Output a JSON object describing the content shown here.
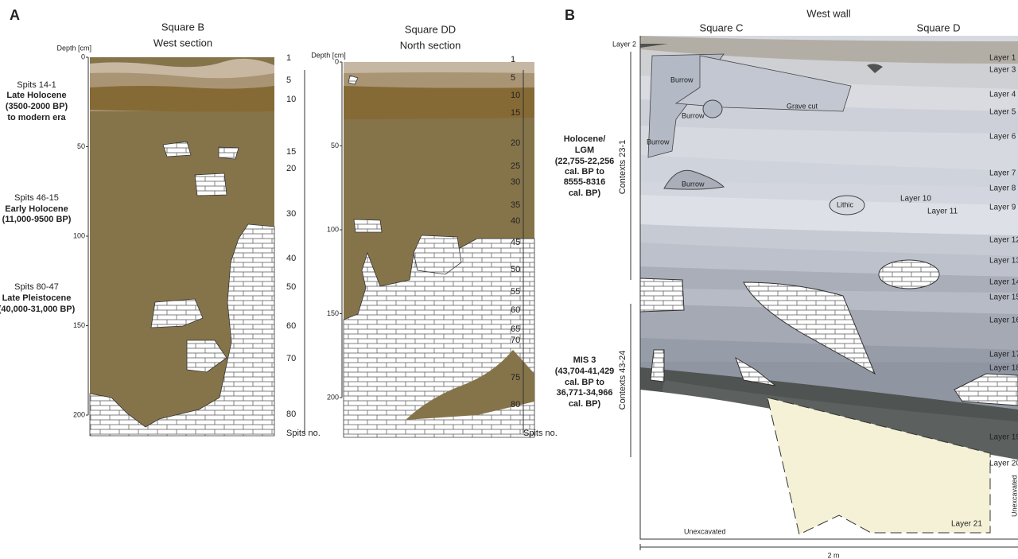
{
  "panel_a": {
    "letter": "A",
    "square_b": {
      "title": "Square B",
      "subtitle": "West section",
      "depth_label": "Depth [cm]",
      "depth_ticks": [
        0,
        50,
        100,
        150,
        200
      ],
      "spits": [
        1,
        5,
        10,
        15,
        20,
        30,
        40,
        50,
        60,
        70,
        80
      ],
      "spits_label": "Spits no."
    },
    "square_dd": {
      "title": "Square DD",
      "subtitle": "North section",
      "depth_label": "Depth [cm]",
      "depth_ticks": [
        0,
        50,
        100,
        150,
        200
      ],
      "spits": [
        1,
        5,
        10,
        15,
        20,
        25,
        30,
        35,
        40,
        45,
        50,
        55,
        60,
        65,
        70,
        75,
        80
      ],
      "spits_label": "Spits no."
    },
    "periods": [
      {
        "lines": [
          "Spits 14-1",
          "Late Holocene",
          "(3500-2000 BP)",
          "to modern era"
        ]
      },
      {
        "lines": [
          "Spits 46-15",
          "Early Holocene",
          "(11,000-9500 BP)"
        ]
      },
      {
        "lines": [
          "Spits 80-47",
          "Late Pleistocene",
          "(40,000-31,000 BP)"
        ]
      }
    ]
  },
  "panel_b": {
    "letter": "B",
    "title": "West wall",
    "square_c": "Square C",
    "square_d": "Square D",
    "phases": [
      {
        "lines": [
          "Holocene/",
          "LGM",
          "(22,755-22,256",
          "cal. BP to",
          "8555-8316",
          "cal. BP)"
        ],
        "contexts": "Contexts 23-1"
      },
      {
        "lines": [
          "MIS 3",
          "(43,704-41,429",
          "cal. BP to",
          "36,771-34,966",
          "cal. BP)"
        ],
        "contexts": "Contexts 43-24"
      }
    ],
    "layers": [
      "Layer 1",
      "Layer 3",
      "Layer 4",
      "Layer 5",
      "Layer 6",
      "Layer 7",
      "Layer 8",
      "Layer 9",
      "Layer 12",
      "Layer 13",
      "Layer 14",
      "Layer 15",
      "Layer 16",
      "Layer 17",
      "Layer 18",
      "Layer 19",
      "Layer 20"
    ],
    "features": {
      "layer_2": "Layer 2",
      "burrows": [
        "Burrow",
        "Burrow",
        "Burrow",
        "Burrow"
      ],
      "grave_cut": "Grave cut",
      "lithic": "Lithic",
      "layer_10": "Layer 10",
      "layer_11": "Layer 11",
      "layer_21": "Layer 21",
      "unexcavated_bottom": "Unexcavated",
      "unexcavated_side": "Unexcavated"
    },
    "scale": "2 m"
  }
}
